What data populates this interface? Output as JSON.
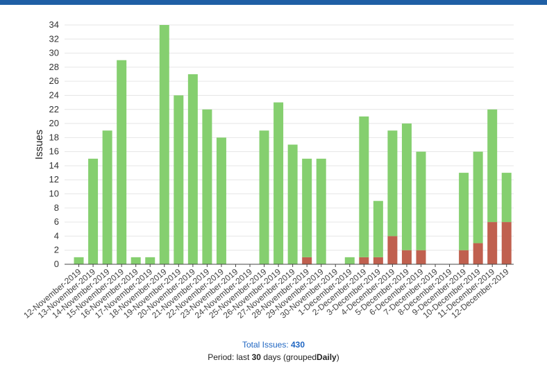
{
  "colors": {
    "topbar": "#1f5fa5",
    "resolved": "#85cf6f",
    "open": "#c0604f",
    "axis": "#444444",
    "grid": "#e6e6e6"
  },
  "chart_data": {
    "type": "bar",
    "stacked": true,
    "ylabel": "Issues",
    "ylim": [
      0,
      34
    ],
    "yticks": [
      0,
      2,
      4,
      6,
      8,
      10,
      12,
      14,
      16,
      18,
      20,
      22,
      24,
      26,
      28,
      30,
      32,
      34
    ],
    "categories": [
      "12-November-2019",
      "13-November-2019",
      "14-November-2019",
      "15-November-2019",
      "16-November-2019",
      "17-November-2019",
      "18-November-2019",
      "19-November-2019",
      "20-November-2019",
      "21-November-2019",
      "22-November-2019",
      "23-November-2019",
      "24-November-2019",
      "25-November-2019",
      "26-November-2019",
      "27-November-2019",
      "28-November-2019",
      "29-November-2019",
      "30-November-2019",
      "1-December-2019",
      "2-December-2019",
      "3-December-2019",
      "4-December-2019",
      "5-December-2019",
      "6-December-2019",
      "7-December-2019",
      "8-December-2019",
      "9-December-2019",
      "10-December-2019",
      "11-December-2019",
      "12-December-2019"
    ],
    "series": [
      {
        "color": "#c0604f",
        "values": [
          0,
          0,
          0,
          0,
          0,
          0,
          0,
          0,
          0,
          0,
          0,
          0,
          0,
          0,
          0,
          0,
          1,
          0,
          0,
          0,
          1,
          1,
          4,
          2,
          2,
          0,
          0,
          2,
          3,
          6,
          6
        ]
      },
      {
        "color": "#85cf6f",
        "values": [
          1,
          15,
          19,
          29,
          1,
          1,
          34,
          24,
          27,
          22,
          18,
          0,
          0,
          19,
          23,
          17,
          14,
          15,
          0,
          1,
          20,
          8,
          15,
          18,
          14,
          0,
          0,
          11,
          13,
          16,
          7
        ]
      }
    ],
    "grid": true
  },
  "footer": {
    "total_label": "Total Issues:",
    "total_value": "430",
    "period_prefix": "Period: last",
    "period_days": "30",
    "period_mid": "days (grouped",
    "period_group": "Daily",
    "period_suffix": ")"
  }
}
